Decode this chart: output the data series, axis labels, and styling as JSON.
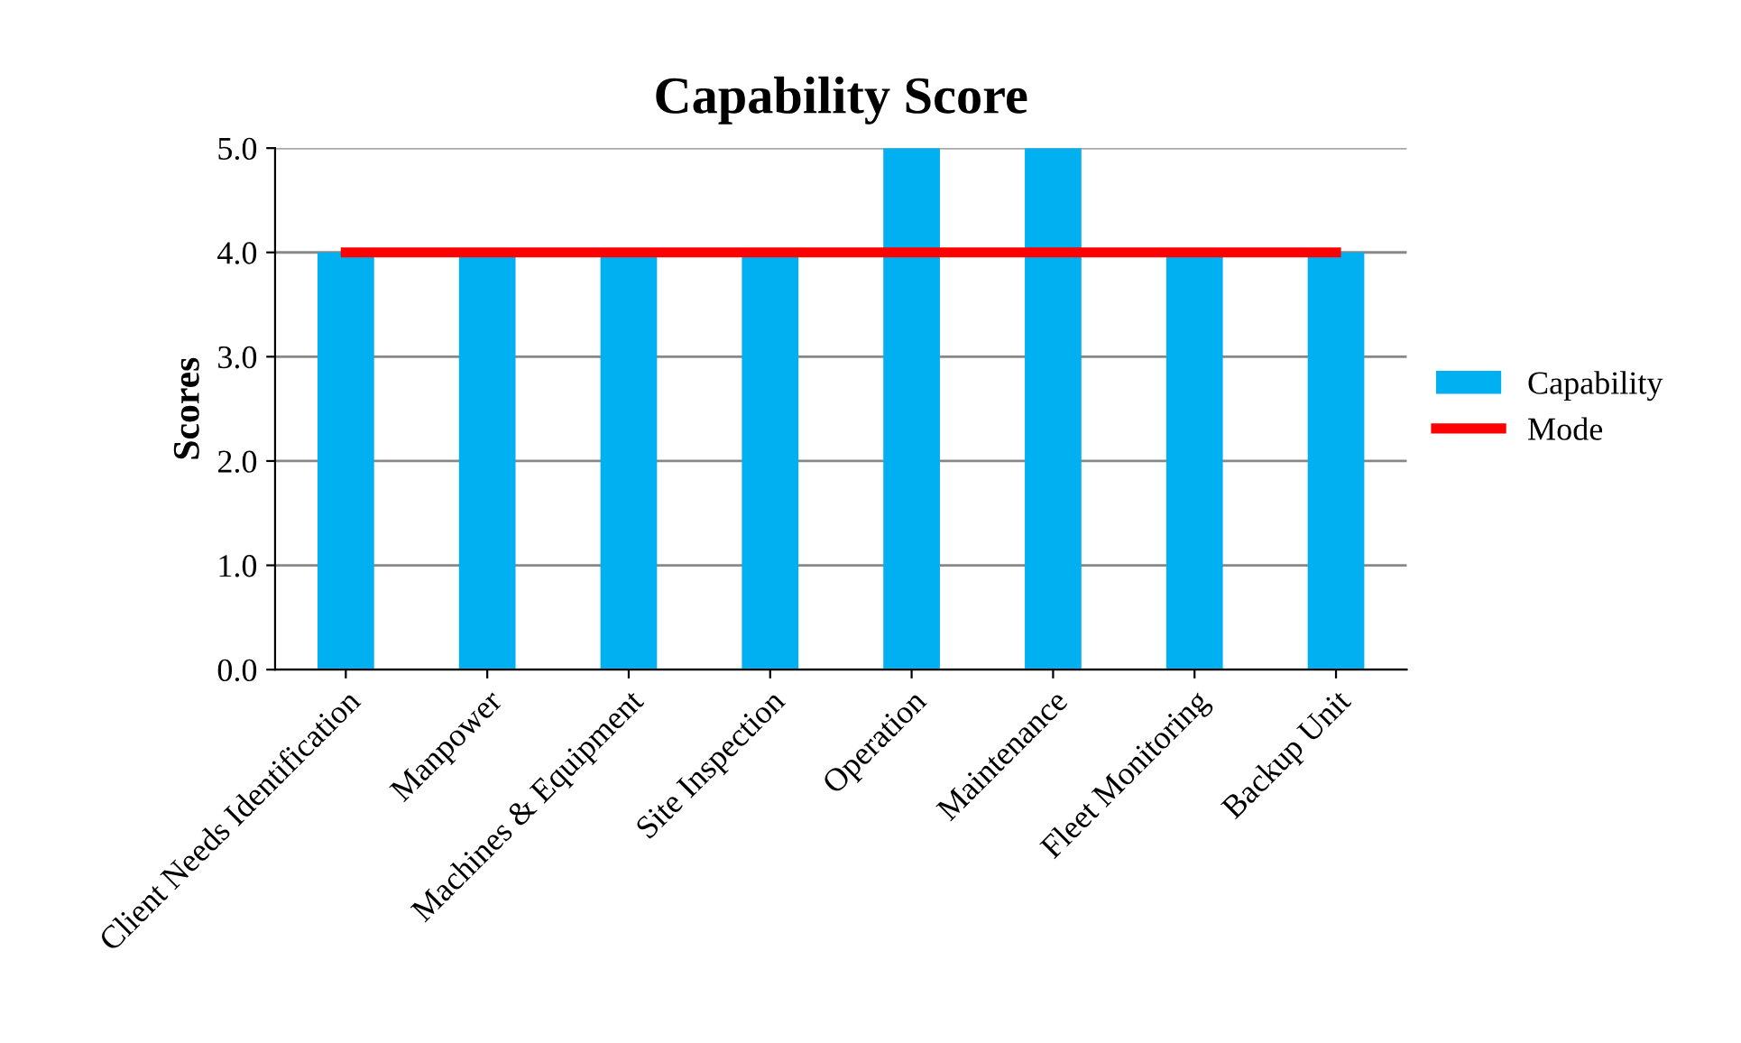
{
  "chart_data": {
    "type": "bar",
    "title": "Capability Score",
    "ylabel": "Scores",
    "categories": [
      "Client Needs Identification",
      "Manpower",
      "Machines & Equipment",
      "Site Inspection",
      "Operation",
      "Maintenance",
      "Fleet Monitoring",
      "Backup Unit"
    ],
    "series": [
      {
        "name": "Capability",
        "color": "#00b0f0",
        "values": [
          4,
          4,
          4,
          4,
          5,
          5,
          4,
          4
        ]
      },
      {
        "name": "Mode",
        "type": "line",
        "color": "#ff0000",
        "values": [
          4,
          4,
          4,
          4,
          4,
          4,
          4,
          4
        ]
      }
    ],
    "ylim": [
      0,
      5
    ],
    "yticks": [
      {
        "value": 0,
        "label": "0.0"
      },
      {
        "value": 1,
        "label": "1.0"
      },
      {
        "value": 2,
        "label": "2.0"
      },
      {
        "value": 3,
        "label": "3.0"
      },
      {
        "value": 4,
        "label": "4.0"
      },
      {
        "value": 5,
        "label": "5.0"
      }
    ],
    "grid": "y",
    "legend": "right",
    "marker": "none"
  }
}
